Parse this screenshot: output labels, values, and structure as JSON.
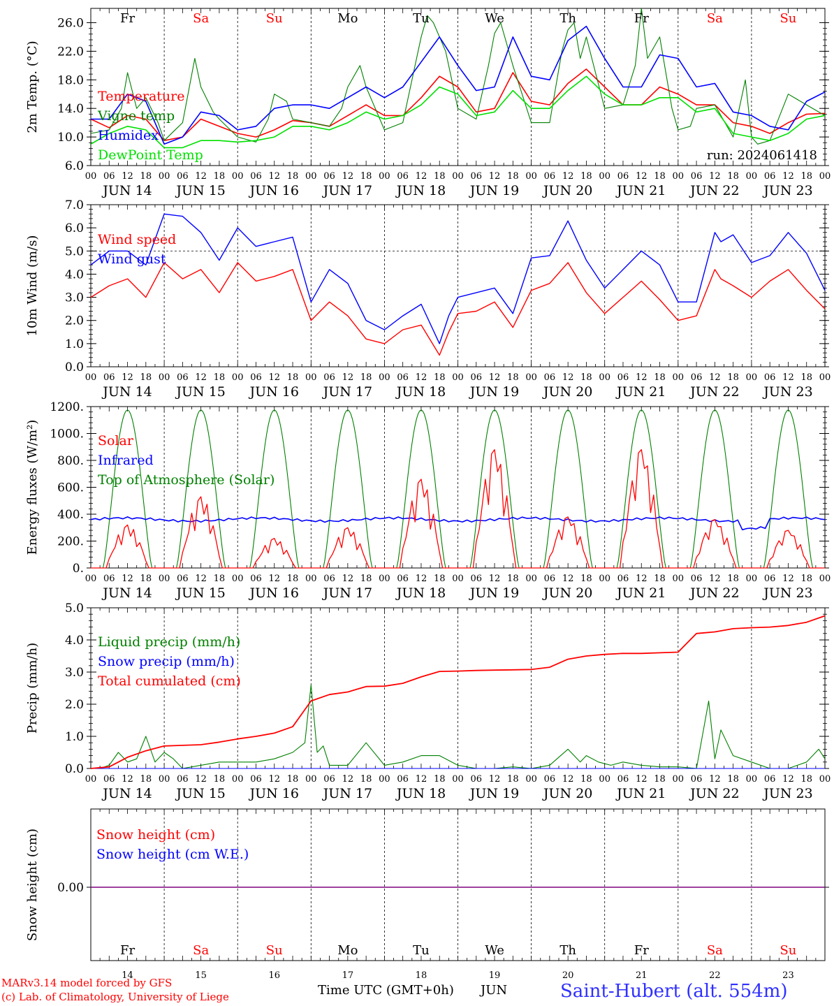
{
  "colors": {
    "red": "#ff0000",
    "green": "#008000",
    "blue": "#0000ff",
    "lightgreen": "#00e000",
    "purple": "#800080",
    "axis": "#000000",
    "station": "#3030ff"
  },
  "days": [
    "Fr",
    "Sa",
    "Su",
    "Mo",
    "Tu",
    "We",
    "Th",
    "Fr",
    "Sa",
    "Su"
  ],
  "weekend_days": [
    "Sa",
    "Su"
  ],
  "date_labels": [
    "JUN 14",
    "JUN 15",
    "JUN 16",
    "JUN 17",
    "JUN 18",
    "JUN 19",
    "JUN 20",
    "JUN 21",
    "JUN 22",
    "JUN 23"
  ],
  "day_numbers": [
    "14",
    "15",
    "16",
    "17",
    "18",
    "19",
    "20",
    "21",
    "22",
    "23"
  ],
  "hour_labels": [
    "00",
    "06",
    "12",
    "18"
  ],
  "footer": {
    "model": "MARv3.14 model forced by GFS",
    "lab": "(c) Lab. of Climatology, University of Liege",
    "time_axis": "Time UTC (GMT+0h)",
    "month": "JUN",
    "station": "Saint-Hubert (alt. 554m)"
  },
  "chart_data": [
    {
      "type": "line",
      "ylabel": "2m Temp. (°C)",
      "ylim": [
        6,
        28
      ],
      "ytick_labels": [
        "6.0",
        "10.0",
        "14.0",
        "18.0",
        "22.0",
        "26.0"
      ],
      "annotation": "run: 2024061418",
      "x_unit": "hours since JUN 14 00 UTC",
      "series": [
        {
          "name": "Temperature",
          "color": "red",
          "x": [
            0,
            6,
            12,
            18,
            24,
            30,
            36,
            42,
            48,
            54,
            60,
            66,
            72,
            78,
            84,
            90,
            96,
            102,
            108,
            114,
            120,
            126,
            132,
            138,
            144,
            150,
            156,
            162,
            168,
            174,
            180,
            186,
            192,
            198,
            204,
            210,
            216,
            222,
            228,
            234,
            240
          ],
          "values": [
            12.5,
            11.3,
            13.0,
            12.5,
            9.5,
            10.0,
            12.5,
            11.5,
            10.5,
            10.0,
            11.0,
            12.3,
            12.0,
            11.5,
            13.0,
            14.5,
            13.0,
            13.0,
            15.5,
            18.5,
            17.0,
            13.5,
            14.0,
            19.0,
            15.0,
            14.5,
            17.5,
            19.5,
            17.0,
            14.5,
            14.5,
            17.0,
            16.0,
            14.5,
            14.5,
            12.0,
            11.5,
            10.5,
            12.0,
            13.2,
            13.3
          ]
        },
        {
          "name": "Vigne temp",
          "color": "green",
          "x": [
            0,
            6,
            10,
            12,
            15,
            18,
            22,
            24,
            30,
            34,
            36,
            40,
            42,
            48,
            54,
            58,
            60,
            64,
            66,
            72,
            78,
            82,
            84,
            88,
            90,
            96,
            102,
            106,
            108,
            110,
            112,
            116,
            120,
            126,
            130,
            132,
            134,
            138,
            144,
            150,
            154,
            156,
            158,
            160,
            162,
            168,
            174,
            178,
            180,
            182,
            186,
            190,
            192,
            196,
            198,
            204,
            210,
            214,
            216,
            218,
            222,
            228,
            234,
            240
          ],
          "values": [
            10.5,
            11.0,
            14.0,
            19.0,
            14.0,
            15.5,
            12.0,
            9.5,
            12.0,
            21.0,
            17.0,
            13.5,
            12.5,
            10.0,
            9.3,
            12.5,
            16.0,
            15.0,
            12.5,
            12.0,
            11.5,
            14.0,
            17.0,
            20.0,
            17.0,
            11.0,
            12.0,
            20.0,
            24.0,
            27.0,
            26.0,
            22.0,
            14.0,
            12.5,
            20.0,
            24.5,
            26.0,
            20.0,
            12.0,
            12.0,
            22.0,
            25.0,
            26.0,
            21.0,
            24.0,
            14.0,
            14.5,
            20.0,
            28.0,
            21.0,
            24.0,
            14.0,
            11.0,
            11.5,
            14.0,
            14.5,
            10.0,
            18.0,
            10.0,
            9.0,
            9.5,
            16.0,
            14.5,
            13.0
          ]
        },
        {
          "name": "Humidex",
          "color": "blue",
          "x": [
            0,
            6,
            12,
            18,
            24,
            30,
            36,
            42,
            48,
            54,
            60,
            66,
            72,
            78,
            84,
            90,
            96,
            102,
            108,
            114,
            120,
            126,
            132,
            138,
            144,
            150,
            156,
            162,
            168,
            174,
            180,
            186,
            192,
            198,
            204,
            210,
            216,
            222,
            228,
            234,
            240
          ],
          "values": [
            12.5,
            12.5,
            16.0,
            15.0,
            9.0,
            10.0,
            13.5,
            13.0,
            11.0,
            11.5,
            14.0,
            14.5,
            14.5,
            14.0,
            15.5,
            17.0,
            15.5,
            17.0,
            20.5,
            24.0,
            20.0,
            16.5,
            17.0,
            24.0,
            18.5,
            18.0,
            23.5,
            25.5,
            21.0,
            17.0,
            17.0,
            21.5,
            21.0,
            17.0,
            17.5,
            13.5,
            13.0,
            11.5,
            11.0,
            15.0,
            16.3
          ]
        },
        {
          "name": "DewPoint Temp",
          "color": "lightgreen",
          "x": [
            0,
            6,
            12,
            18,
            24,
            30,
            36,
            42,
            48,
            54,
            60,
            66,
            72,
            78,
            84,
            90,
            96,
            102,
            108,
            114,
            120,
            126,
            132,
            138,
            144,
            150,
            156,
            162,
            168,
            174,
            180,
            186,
            192,
            198,
            204,
            210,
            216,
            222,
            228,
            234,
            240
          ],
          "values": [
            9.0,
            10.5,
            11.5,
            11.0,
            8.5,
            8.5,
            9.5,
            9.5,
            9.3,
            9.5,
            10.0,
            11.5,
            11.5,
            11.0,
            12.0,
            13.5,
            12.5,
            13.0,
            14.5,
            17.0,
            16.0,
            13.0,
            13.5,
            16.5,
            14.0,
            14.0,
            16.5,
            18.5,
            16.0,
            14.5,
            14.5,
            15.5,
            15.5,
            13.5,
            14.0,
            10.5,
            10.0,
            9.5,
            10.5,
            12.5,
            13.0
          ]
        }
      ]
    },
    {
      "type": "line",
      "ylabel": "10m Wind (m/s)",
      "ylim": [
        0,
        7
      ],
      "ytick_labels": [
        "0.0",
        "1.0",
        "2.0",
        "3.0",
        "4.0",
        "5.0",
        "6.0",
        "7.0"
      ],
      "reference_line": 5,
      "x_unit": "hours since JUN 14 00 UTC",
      "series": [
        {
          "name": "Wind speed",
          "color": "red",
          "x": [
            0,
            6,
            12,
            18,
            24,
            30,
            36,
            42,
            48,
            54,
            60,
            66,
            72,
            78,
            84,
            90,
            96,
            102,
            108,
            114,
            117,
            120,
            126,
            132,
            138,
            144,
            150,
            156,
            162,
            168,
            174,
            180,
            186,
            192,
            198,
            204,
            206,
            210,
            216,
            222,
            228,
            234,
            240
          ],
          "values": [
            3.0,
            3.5,
            3.8,
            3.0,
            4.5,
            3.8,
            4.2,
            3.2,
            4.5,
            3.7,
            3.9,
            4.2,
            2.0,
            2.8,
            2.2,
            1.2,
            1.0,
            1.6,
            1.8,
            0.5,
            1.5,
            2.3,
            2.4,
            2.8,
            1.7,
            3.3,
            3.6,
            4.5,
            3.2,
            2.3,
            3.0,
            3.7,
            2.9,
            2.0,
            2.2,
            4.2,
            3.8,
            3.5,
            3.0,
            3.7,
            4.2,
            3.3,
            2.5
          ]
        },
        {
          "name": "Wind gust",
          "color": "blue",
          "x": [
            0,
            6,
            12,
            18,
            24,
            30,
            36,
            42,
            48,
            54,
            60,
            66,
            72,
            78,
            84,
            90,
            96,
            102,
            108,
            114,
            117,
            120,
            126,
            132,
            138,
            144,
            150,
            156,
            162,
            168,
            174,
            180,
            186,
            192,
            198,
            204,
            206,
            210,
            216,
            222,
            228,
            234,
            240
          ],
          "values": [
            4.4,
            5.0,
            5.0,
            4.4,
            6.6,
            6.5,
            5.8,
            4.6,
            6.0,
            5.2,
            5.4,
            5.6,
            2.8,
            4.2,
            3.6,
            2.0,
            1.6,
            2.2,
            2.7,
            1.0,
            2.2,
            3.0,
            3.2,
            3.4,
            2.3,
            4.7,
            4.8,
            6.3,
            4.6,
            3.4,
            4.2,
            5.0,
            4.4,
            2.8,
            2.8,
            5.8,
            5.4,
            5.7,
            4.5,
            4.8,
            5.8,
            4.9,
            3.3
          ]
        }
      ]
    },
    {
      "type": "line",
      "ylabel": "Energy fluxes (W/m²)",
      "ylim": [
        0,
        1200
      ],
      "ytick_labels": [
        "0.",
        "200.",
        "400.",
        "600.",
        "800.",
        "1000.",
        "1200."
      ],
      "series": [
        {
          "name": "Solar",
          "color": "red",
          "peaks": [
            320,
            530,
            220,
            300,
            660,
            880,
            380,
            880,
            360,
            280
          ]
        },
        {
          "name": "Infrared",
          "color": "blue",
          "level": 360
        },
        {
          "name": "Top of Atmosphere (Solar)",
          "color": "green",
          "peak": 1175
        }
      ]
    },
    {
      "type": "line",
      "ylabel": "Precip (mm/h)",
      "ylim": [
        0,
        5
      ],
      "ytick_labels": [
        "0.0",
        "1.0",
        "2.0",
        "3.0",
        "4.0",
        "5.0"
      ],
      "x_unit": "hours since JUN 14 00 UTC",
      "series": [
        {
          "name": "Liquid precip (mm/h)",
          "color": "green",
          "x": [
            0,
            3,
            6,
            9,
            12,
            15,
            18,
            21,
            24,
            27,
            30,
            36,
            42,
            48,
            54,
            60,
            66,
            70,
            72,
            74,
            76,
            78,
            84,
            90,
            96,
            102,
            108,
            114,
            120,
            126,
            132,
            138,
            144,
            150,
            156,
            160,
            162,
            166,
            170,
            174,
            180,
            186,
            192,
            198,
            202,
            204,
            206,
            210,
            216,
            222,
            228,
            234,
            238,
            240
          ],
          "values": [
            0,
            0,
            0.1,
            0.5,
            0.2,
            0.3,
            1.0,
            0.2,
            0.5,
            0.3,
            0,
            0.1,
            0.2,
            0.2,
            0.2,
            0.3,
            0.5,
            0.8,
            2.6,
            0.5,
            0.7,
            0.1,
            0.1,
            0.8,
            0.1,
            0.2,
            0.4,
            0.4,
            0.1,
            0,
            0,
            0.05,
            0,
            0.1,
            0.6,
            0.2,
            0.4,
            0.2,
            0.1,
            0.2,
            0.1,
            0.05,
            0.05,
            0,
            2.1,
            0.3,
            1.2,
            0.4,
            0.2,
            0,
            0,
            0.2,
            0.6,
            0.3
          ]
        },
        {
          "name": "Snow precip (mm/h)",
          "color": "blue",
          "x": [
            0,
            240
          ],
          "values": [
            0,
            0
          ]
        },
        {
          "name": "Total cumulated (cm)",
          "color": "red",
          "x": [
            0,
            6,
            12,
            18,
            24,
            30,
            36,
            42,
            48,
            54,
            60,
            66,
            72,
            78,
            84,
            90,
            96,
            102,
            108,
            114,
            120,
            126,
            132,
            138,
            144,
            150,
            156,
            162,
            168,
            174,
            180,
            186,
            192,
            198,
            204,
            210,
            216,
            222,
            228,
            234,
            240
          ],
          "values": [
            0,
            0.05,
            0.35,
            0.55,
            0.7,
            0.72,
            0.74,
            0.82,
            0.92,
            1.0,
            1.1,
            1.3,
            2.1,
            2.3,
            2.38,
            2.55,
            2.56,
            2.65,
            2.85,
            3.02,
            3.03,
            3.05,
            3.06,
            3.07,
            3.08,
            3.15,
            3.4,
            3.5,
            3.55,
            3.58,
            3.58,
            3.6,
            3.62,
            4.2,
            4.25,
            4.35,
            4.38,
            4.4,
            4.45,
            4.55,
            4.75
          ]
        }
      ]
    },
    {
      "type": "line",
      "ylabel": "Snow height (cm)",
      "ytick_labels": [
        "0.00"
      ],
      "series": [
        {
          "name": "Snow height (cm)",
          "color": "red",
          "values": [
            0,
            0
          ]
        },
        {
          "name": "Snow height (cm W.E.)",
          "color": "blue",
          "values": [
            0,
            0
          ]
        }
      ]
    }
  ]
}
